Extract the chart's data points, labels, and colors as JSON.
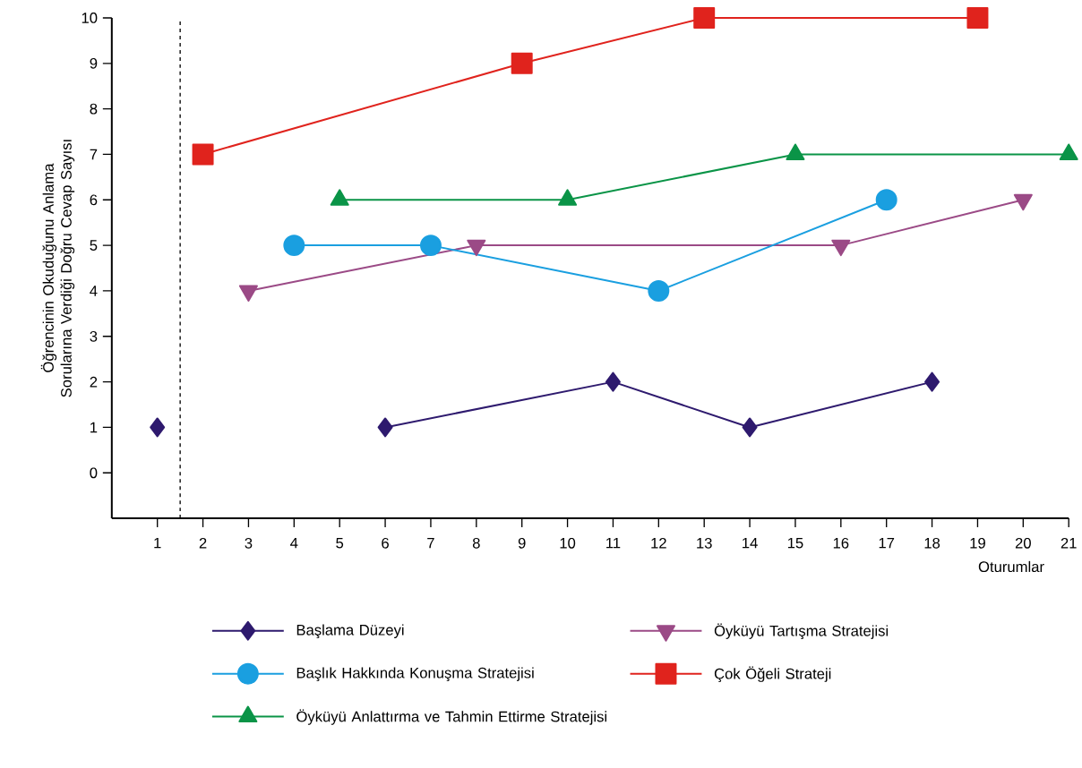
{
  "chart_data": {
    "type": "line",
    "xlabel": "Oturumlar",
    "ylabel": "Öğrencinin Okuduğunu Anlama Sorularına Verdiği Doğru Cevap Sayısı",
    "xlim": [
      0,
      21
    ],
    "ylim": [
      -1,
      10
    ],
    "xticks": [
      1,
      2,
      3,
      4,
      5,
      6,
      7,
      8,
      9,
      10,
      11,
      12,
      13,
      14,
      15,
      16,
      17,
      18,
      19,
      20,
      21
    ],
    "yticks": [
      0,
      1,
      2,
      3,
      4,
      5,
      6,
      7,
      8,
      9,
      10
    ],
    "grid": false,
    "legend": "bottom",
    "line_style": "solid",
    "ref_lines": [
      {
        "axis": "x",
        "value": 1.5,
        "color": "#000000",
        "line_style": "dashed"
      }
    ],
    "series": [
      {
        "name": "Başlama Düzeyi",
        "color": "#2e1a6e",
        "marker": "diamond",
        "x": [
          1,
          1.5,
          6,
          11,
          14,
          18
        ],
        "values": [
          1,
          null,
          1,
          2,
          1,
          2
        ]
      },
      {
        "name": "Başlık Hakkında Konuşma Stratejisi",
        "color": "#1a9fe0",
        "marker": "circle",
        "x": [
          4,
          7,
          12,
          17
        ],
        "values": [
          5,
          5,
          4,
          6
        ]
      },
      {
        "name": "Öyküyü Anlattırma ve Tahmin Ettirme Stratejisi",
        "color": "#0a9447",
        "marker": "triangle",
        "x": [
          5,
          10,
          15,
          21
        ],
        "values": [
          6,
          6,
          7,
          7
        ]
      },
      {
        "name": "Öyküyü Tartışma Stratejisi",
        "color": "#9b4a86",
        "marker": "triangle-down",
        "x": [
          3,
          8,
          16,
          20
        ],
        "values": [
          4,
          5,
          5,
          6
        ]
      },
      {
        "name": "Çok Öğeli Strateji",
        "color": "#e0231d",
        "marker": "square",
        "x": [
          2,
          9,
          13,
          19
        ],
        "values": [
          7,
          9,
          10,
          10
        ]
      }
    ]
  }
}
